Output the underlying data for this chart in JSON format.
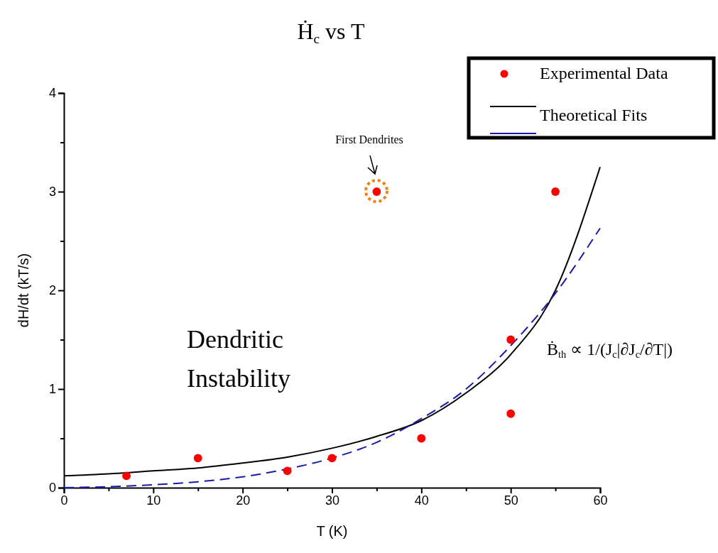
{
  "chart_data": {
    "type": "scatter",
    "title": "Ḣ$_{c}$ vs T",
    "xlabel": "T (K)",
    "ylabel": "dH/dt (kT/s)",
    "xlim": [
      0,
      60
    ],
    "ylim": [
      0,
      4
    ],
    "xticks": [
      0,
      {
        "value": 5,
        "label": null
      },
      10,
      {
        "value": 15,
        "label": null
      },
      20,
      {
        "value": 25,
        "label": null
      },
      30,
      {
        "value": 35,
        "label": null
      },
      40,
      {
        "value": 45,
        "label": null
      },
      50,
      {
        "value": 55,
        "label": null
      },
      60
    ],
    "yticks": [
      0,
      {
        "value": 0.5,
        "label": null
      },
      1,
      {
        "value": 1.5,
        "label": null
      },
      2,
      {
        "value": 2.5,
        "label": null
      },
      3,
      {
        "value": 3.5,
        "label": null
      },
      4
    ],
    "grid": false,
    "legend": "top right",
    "series": [
      {
        "name": "Experimental Data",
        "marker": "circle",
        "color": "#ff0000",
        "x": [
          7,
          15,
          25,
          30,
          35,
          40,
          50,
          50,
          55
        ],
        "values": [
          0.12,
          0.3,
          0.17,
          0.3,
          3.0,
          0.5,
          1.5,
          0.75,
          3.0
        ]
      },
      {
        "name": "Theoretical Fits",
        "type": "line",
        "line_style": "solid",
        "color": "#000000",
        "x": [
          0,
          5,
          10,
          15,
          20,
          25,
          30,
          35,
          40,
          45,
          50,
          55,
          60
        ],
        "values": [
          0.12,
          0.14,
          0.17,
          0.2,
          0.25,
          0.31,
          0.4,
          0.52,
          0.68,
          0.96,
          1.35,
          2.0,
          3.25
        ]
      },
      {
        "type": "line",
        "line_style": "dashed",
        "color": "#1a1aaa",
        "x": [
          0,
          5,
          10,
          15,
          20,
          25,
          30,
          35,
          40,
          45,
          50,
          55,
          60
        ],
        "values": [
          0,
          0.01,
          0.03,
          0.06,
          0.11,
          0.19,
          0.3,
          0.46,
          0.7,
          1.0,
          1.44,
          1.97,
          2.63
        ]
      }
    ],
    "annotations": [
      "First Dendrites",
      "Dendritic Instability",
      "Ḃ$_{th}$ ∝ 1/(J$_{c}$|∂J$_{c}$/∂T|)"
    ]
  }
}
